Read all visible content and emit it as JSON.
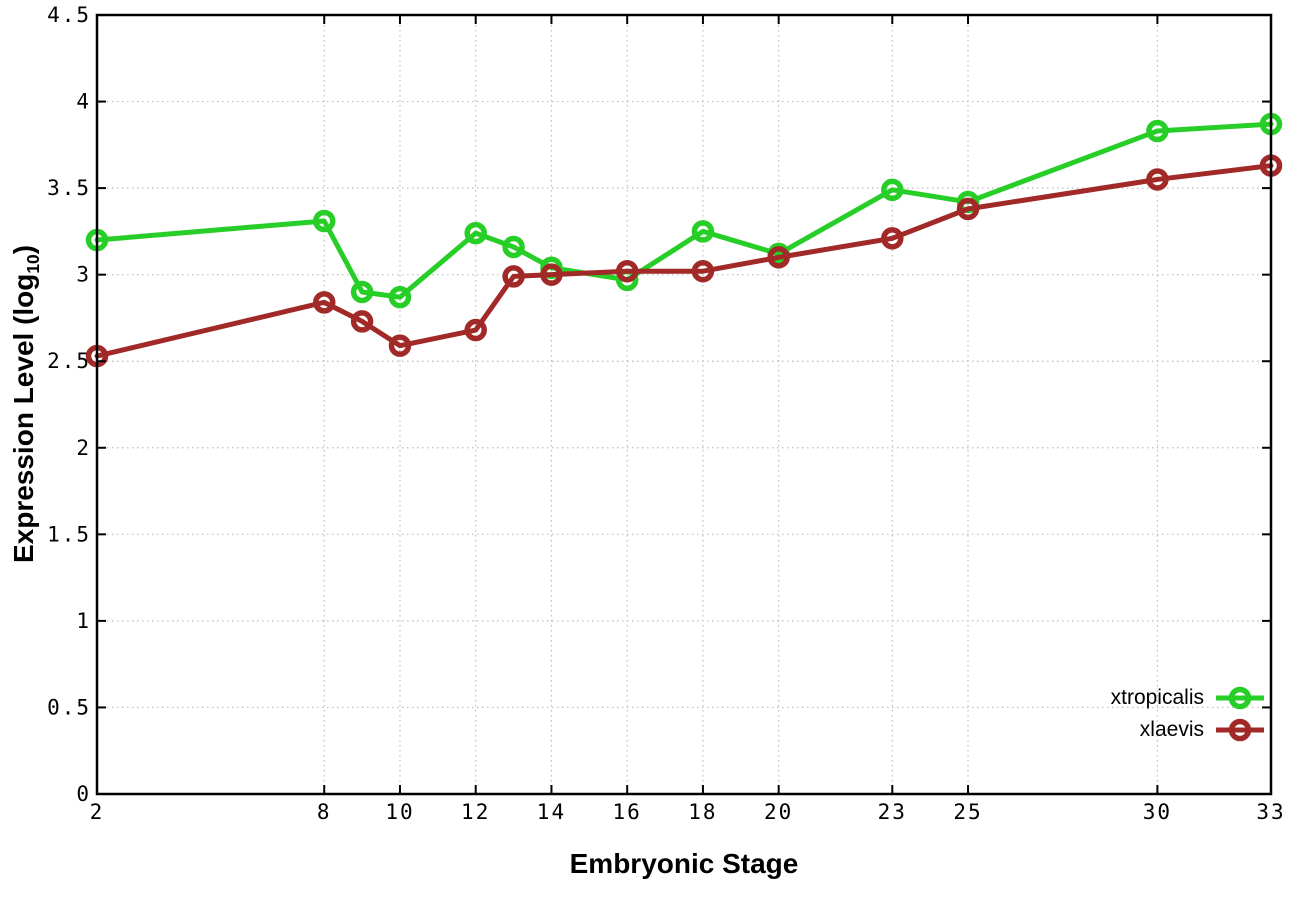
{
  "chart_data": {
    "type": "line",
    "title": "",
    "xlabel": "Embryonic Stage",
    "ylabel": "Expression Level (log10)",
    "ylabel_parts": {
      "main": "Expression Level (log",
      "sub": "10",
      "close": ")"
    },
    "xlim": [
      2,
      33
    ],
    "ylim": [
      0,
      4.5
    ],
    "xticks": [
      2,
      8,
      10,
      12,
      14,
      16,
      18,
      20,
      23,
      25,
      30,
      33
    ],
    "xtick_labels": [
      "2",
      "8",
      "10",
      "12",
      "14",
      "16",
      "18",
      "20",
      "23",
      "25",
      "30",
      "33"
    ],
    "yticks": [
      0,
      0.5,
      1,
      1.5,
      2,
      2.5,
      3,
      3.5,
      4,
      4.5
    ],
    "ytick_labels": [
      "0",
      "0.5",
      "1",
      "1.5",
      "2",
      "2.5",
      "3",
      "3.5",
      "4",
      "4.5"
    ],
    "grid": true,
    "legend_position": "bottom-right",
    "x": [
      2,
      8,
      9,
      10,
      12,
      13,
      14,
      16,
      18,
      20,
      23,
      25,
      30,
      33
    ],
    "series": [
      {
        "name": "xtropicalis",
        "color": "#27CE27",
        "marker": "open-circle",
        "values": [
          3.2,
          3.31,
          2.9,
          2.87,
          3.24,
          3.16,
          3.04,
          2.97,
          3.25,
          3.12,
          3.49,
          3.42,
          3.83,
          3.87
        ]
      },
      {
        "name": "xlaevis",
        "color": "#A12A28",
        "marker": "open-circle",
        "values": [
          2.53,
          2.84,
          2.73,
          2.59,
          2.68,
          2.99,
          3.0,
          3.02,
          3.02,
          3.1,
          3.21,
          3.38,
          3.55,
          3.63
        ]
      }
    ]
  },
  "styles": {
    "background": "#ffffff",
    "axis_color": "#000000",
    "grid_color": "#bdbdbd",
    "text_color": "#000000"
  }
}
